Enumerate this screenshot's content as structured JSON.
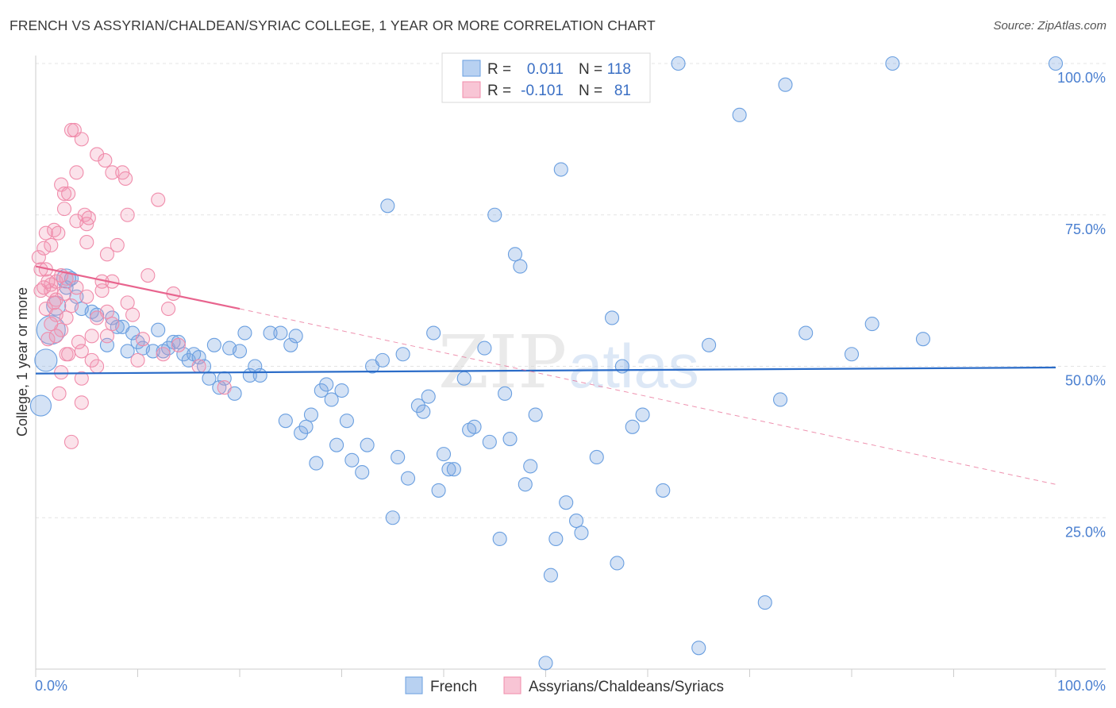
{
  "header": {
    "title": "FRENCH VS ASSYRIAN/CHALDEAN/SYRIAC COLLEGE, 1 YEAR OR MORE CORRELATION CHART",
    "source": "Source: ZipAtlas.com"
  },
  "watermark": {
    "zip": "ZIP",
    "atlas": "atlas"
  },
  "chart_data": {
    "type": "scatter",
    "title": "FRENCH VS ASSYRIAN/CHALDEAN/SYRIAC COLLEGE, 1 YEAR OR MORE CORRELATION CHART",
    "xlabel": "",
    "ylabel": "College, 1 year or more",
    "xlim": [
      0,
      100
    ],
    "ylim": [
      0,
      100
    ],
    "x_tick_labels": {
      "left": "0.0%",
      "right": "100.0%"
    },
    "y_ticks": [
      {
        "value": 25,
        "label": "25.0%"
      },
      {
        "value": 50,
        "label": "50.0%"
      },
      {
        "value": 75,
        "label": "75.0%"
      },
      {
        "value": 100,
        "label": "100.0%"
      }
    ],
    "grid": true,
    "legend_position": "top-center",
    "colors": {
      "french": "#6a9fe0",
      "french_line": "#2b6cc8",
      "assyrian": "#f08cab",
      "assyrian_line": "#e8648e"
    },
    "legend": {
      "r_label": "R =",
      "n_label": "N =",
      "rows": [
        {
          "series": "French",
          "r": "0.011",
          "n": "118"
        },
        {
          "series": "Assyrians/Chaldeans/Syriacs",
          "r": "-0.101",
          "n": "81"
        }
      ]
    },
    "series": [
      {
        "name": "French",
        "trend": {
          "x0": 0,
          "y0": 48.8,
          "x1": 100,
          "y1": 49.8
        },
        "points": [
          [
            1.0,
            51.0
          ],
          [
            0.5,
            43.5
          ],
          [
            1.5,
            56.0
          ],
          [
            2.0,
            60.0
          ],
          [
            3.0,
            63.0
          ],
          [
            3.0,
            64.5
          ],
          [
            3.5,
            64.5
          ],
          [
            4.0,
            61.5
          ],
          [
            4.5,
            59.5
          ],
          [
            5.5,
            59.0
          ],
          [
            6.0,
            58.5
          ],
          [
            7.5,
            58.0
          ],
          [
            7.0,
            53.5
          ],
          [
            8.0,
            56.5
          ],
          [
            8.5,
            56.5
          ],
          [
            9.0,
            52.5
          ],
          [
            9.5,
            55.5
          ],
          [
            10.0,
            54.0
          ],
          [
            10.5,
            53.0
          ],
          [
            11.5,
            52.5
          ],
          [
            12.0,
            56.0
          ],
          [
            12.5,
            52.5
          ],
          [
            13.0,
            53.0
          ],
          [
            13.5,
            54.0
          ],
          [
            14.0,
            54.0
          ],
          [
            14.5,
            52.0
          ],
          [
            15.0,
            51.0
          ],
          [
            15.5,
            52.0
          ],
          [
            16.0,
            51.5
          ],
          [
            16.5,
            50.0
          ],
          [
            17.0,
            48.0
          ],
          [
            17.5,
            53.5
          ],
          [
            18.0,
            46.5
          ],
          [
            18.5,
            48.0
          ],
          [
            19.0,
            53.0
          ],
          [
            19.5,
            45.5
          ],
          [
            20.0,
            52.5
          ],
          [
            20.5,
            55.5
          ],
          [
            21.0,
            48.5
          ],
          [
            21.5,
            50.0
          ],
          [
            22.0,
            48.5
          ],
          [
            23.0,
            55.5
          ],
          [
            24.0,
            55.5
          ],
          [
            24.5,
            41.0
          ],
          [
            25.0,
            53.5
          ],
          [
            25.5,
            55.0
          ],
          [
            26.0,
            39.0
          ],
          [
            26.5,
            40.0
          ],
          [
            27.0,
            42.0
          ],
          [
            27.5,
            34.0
          ],
          [
            28.0,
            46.0
          ],
          [
            28.5,
            47.0
          ],
          [
            29.0,
            44.5
          ],
          [
            29.5,
            37.0
          ],
          [
            30.0,
            46.0
          ],
          [
            30.5,
            41.0
          ],
          [
            31.0,
            34.5
          ],
          [
            32.0,
            32.5
          ],
          [
            32.5,
            37.0
          ],
          [
            33.0,
            50.0
          ],
          [
            34.0,
            51.0
          ],
          [
            34.5,
            76.5
          ],
          [
            35.0,
            25.0
          ],
          [
            35.5,
            35.0
          ],
          [
            36.0,
            52.0
          ],
          [
            36.5,
            31.5
          ],
          [
            37.5,
            43.5
          ],
          [
            38.0,
            42.5
          ],
          [
            38.5,
            45.0
          ],
          [
            39.0,
            55.5
          ],
          [
            39.5,
            29.5
          ],
          [
            40.0,
            35.5
          ],
          [
            40.5,
            33.0
          ],
          [
            41.0,
            33.0
          ],
          [
            42.0,
            48.0
          ],
          [
            42.5,
            39.5
          ],
          [
            43.0,
            40.0
          ],
          [
            44.0,
            53.0
          ],
          [
            44.5,
            37.5
          ],
          [
            45.0,
            75.0
          ],
          [
            45.5,
            21.5
          ],
          [
            46.0,
            45.5
          ],
          [
            46.5,
            38.0
          ],
          [
            47.0,
            68.5
          ],
          [
            47.5,
            66.5
          ],
          [
            48.0,
            30.5
          ],
          [
            48.5,
            33.5
          ],
          [
            49.0,
            42.0
          ],
          [
            50.0,
            1.0
          ],
          [
            50.5,
            15.5
          ],
          [
            51.0,
            21.5
          ],
          [
            51.5,
            82.5
          ],
          [
            52.0,
            27.5
          ],
          [
            53.0,
            24.5
          ],
          [
            53.5,
            22.5
          ],
          [
            55.0,
            35.0
          ],
          [
            56.5,
            58.0
          ],
          [
            57.0,
            17.5
          ],
          [
            57.5,
            50.0
          ],
          [
            58.5,
            40.0
          ],
          [
            59.5,
            42.0
          ],
          [
            61.5,
            29.5
          ],
          [
            63.0,
            100.0
          ],
          [
            65.0,
            3.5
          ],
          [
            66.0,
            53.5
          ],
          [
            69.0,
            91.5
          ],
          [
            71.5,
            11.0
          ],
          [
            73.5,
            96.5
          ],
          [
            73.0,
            44.5
          ],
          [
            75.5,
            55.5
          ],
          [
            80.0,
            52.0
          ],
          [
            82.0,
            57.0
          ],
          [
            84.0,
            100.0
          ],
          [
            87.0,
            54.5
          ],
          [
            100.0,
            100.0
          ]
        ]
      },
      {
        "name": "Assyrians/Chaldeans/Syriacs",
        "trend": {
          "x0": 0,
          "y0": 66.5,
          "x1": 20,
          "y1": 59.5,
          "dash_x1": 100,
          "dash_y1": 30.5
        },
        "points": [
          [
            0.3,
            68.0
          ],
          [
            0.5,
            66.0
          ],
          [
            0.5,
            62.5
          ],
          [
            0.8,
            69.5
          ],
          [
            1.0,
            72.0
          ],
          [
            1.0,
            59.5
          ],
          [
            1.2,
            54.5
          ],
          [
            1.5,
            70.0
          ],
          [
            1.5,
            63.5
          ],
          [
            1.5,
            62.5
          ],
          [
            1.8,
            72.5
          ],
          [
            2.0,
            64.0
          ],
          [
            2.0,
            61.0
          ],
          [
            2.0,
            58.5
          ],
          [
            2.2,
            72.0
          ],
          [
            2.3,
            45.5
          ],
          [
            2.5,
            80.0
          ],
          [
            2.5,
            49.0
          ],
          [
            2.5,
            56.0
          ],
          [
            2.8,
            78.5
          ],
          [
            2.8,
            76.0
          ],
          [
            3.0,
            64.5
          ],
          [
            3.0,
            52.0
          ],
          [
            3.2,
            78.5
          ],
          [
            3.5,
            89.0
          ],
          [
            3.5,
            60.0
          ],
          [
            3.5,
            37.5
          ],
          [
            3.8,
            89.0
          ],
          [
            4.0,
            82.0
          ],
          [
            4.0,
            74.0
          ],
          [
            4.2,
            54.0
          ],
          [
            4.5,
            87.5
          ],
          [
            4.5,
            52.5
          ],
          [
            4.5,
            44.0
          ],
          [
            4.8,
            75.0
          ],
          [
            5.0,
            73.5
          ],
          [
            5.0,
            70.5
          ],
          [
            5.2,
            74.5
          ],
          [
            5.5,
            55.0
          ],
          [
            5.5,
            51.0
          ],
          [
            6.0,
            85.0
          ],
          [
            6.0,
            50.0
          ],
          [
            6.5,
            64.0
          ],
          [
            6.5,
            62.5
          ],
          [
            6.8,
            84.0
          ],
          [
            7.0,
            68.5
          ],
          [
            7.0,
            59.0
          ],
          [
            7.0,
            55.0
          ],
          [
            7.5,
            82.0
          ],
          [
            7.5,
            64.0
          ],
          [
            7.5,
            57.0
          ],
          [
            8.0,
            70.0
          ],
          [
            8.5,
            82.0
          ],
          [
            8.8,
            81.0
          ],
          [
            9.0,
            60.5
          ],
          [
            9.0,
            75.0
          ],
          [
            9.5,
            58.5
          ],
          [
            10.0,
            51.0
          ],
          [
            10.5,
            54.5
          ],
          [
            11.0,
            65.0
          ],
          [
            12.0,
            77.5
          ],
          [
            12.5,
            52.0
          ],
          [
            13.0,
            59.5
          ],
          [
            13.5,
            62.0
          ],
          [
            14.0,
            53.5
          ],
          [
            1.0,
            66.0
          ],
          [
            1.8,
            60.5
          ],
          [
            2.5,
            65.0
          ],
          [
            3.0,
            58.0
          ],
          [
            4.0,
            63.0
          ],
          [
            5.0,
            61.5
          ],
          [
            6.0,
            58.0
          ],
          [
            1.2,
            64.0
          ],
          [
            2.0,
            55.0
          ],
          [
            3.2,
            52.0
          ],
          [
            4.5,
            48.0
          ],
          [
            0.8,
            63.0
          ],
          [
            1.5,
            57.0
          ],
          [
            2.8,
            62.0
          ],
          [
            18.5,
            46.5
          ],
          [
            16.0,
            50.0
          ]
        ]
      }
    ]
  },
  "bottom_legend": [
    {
      "label": "French"
    },
    {
      "label": "Assyrians/Chaldeans/Syriacs"
    }
  ]
}
